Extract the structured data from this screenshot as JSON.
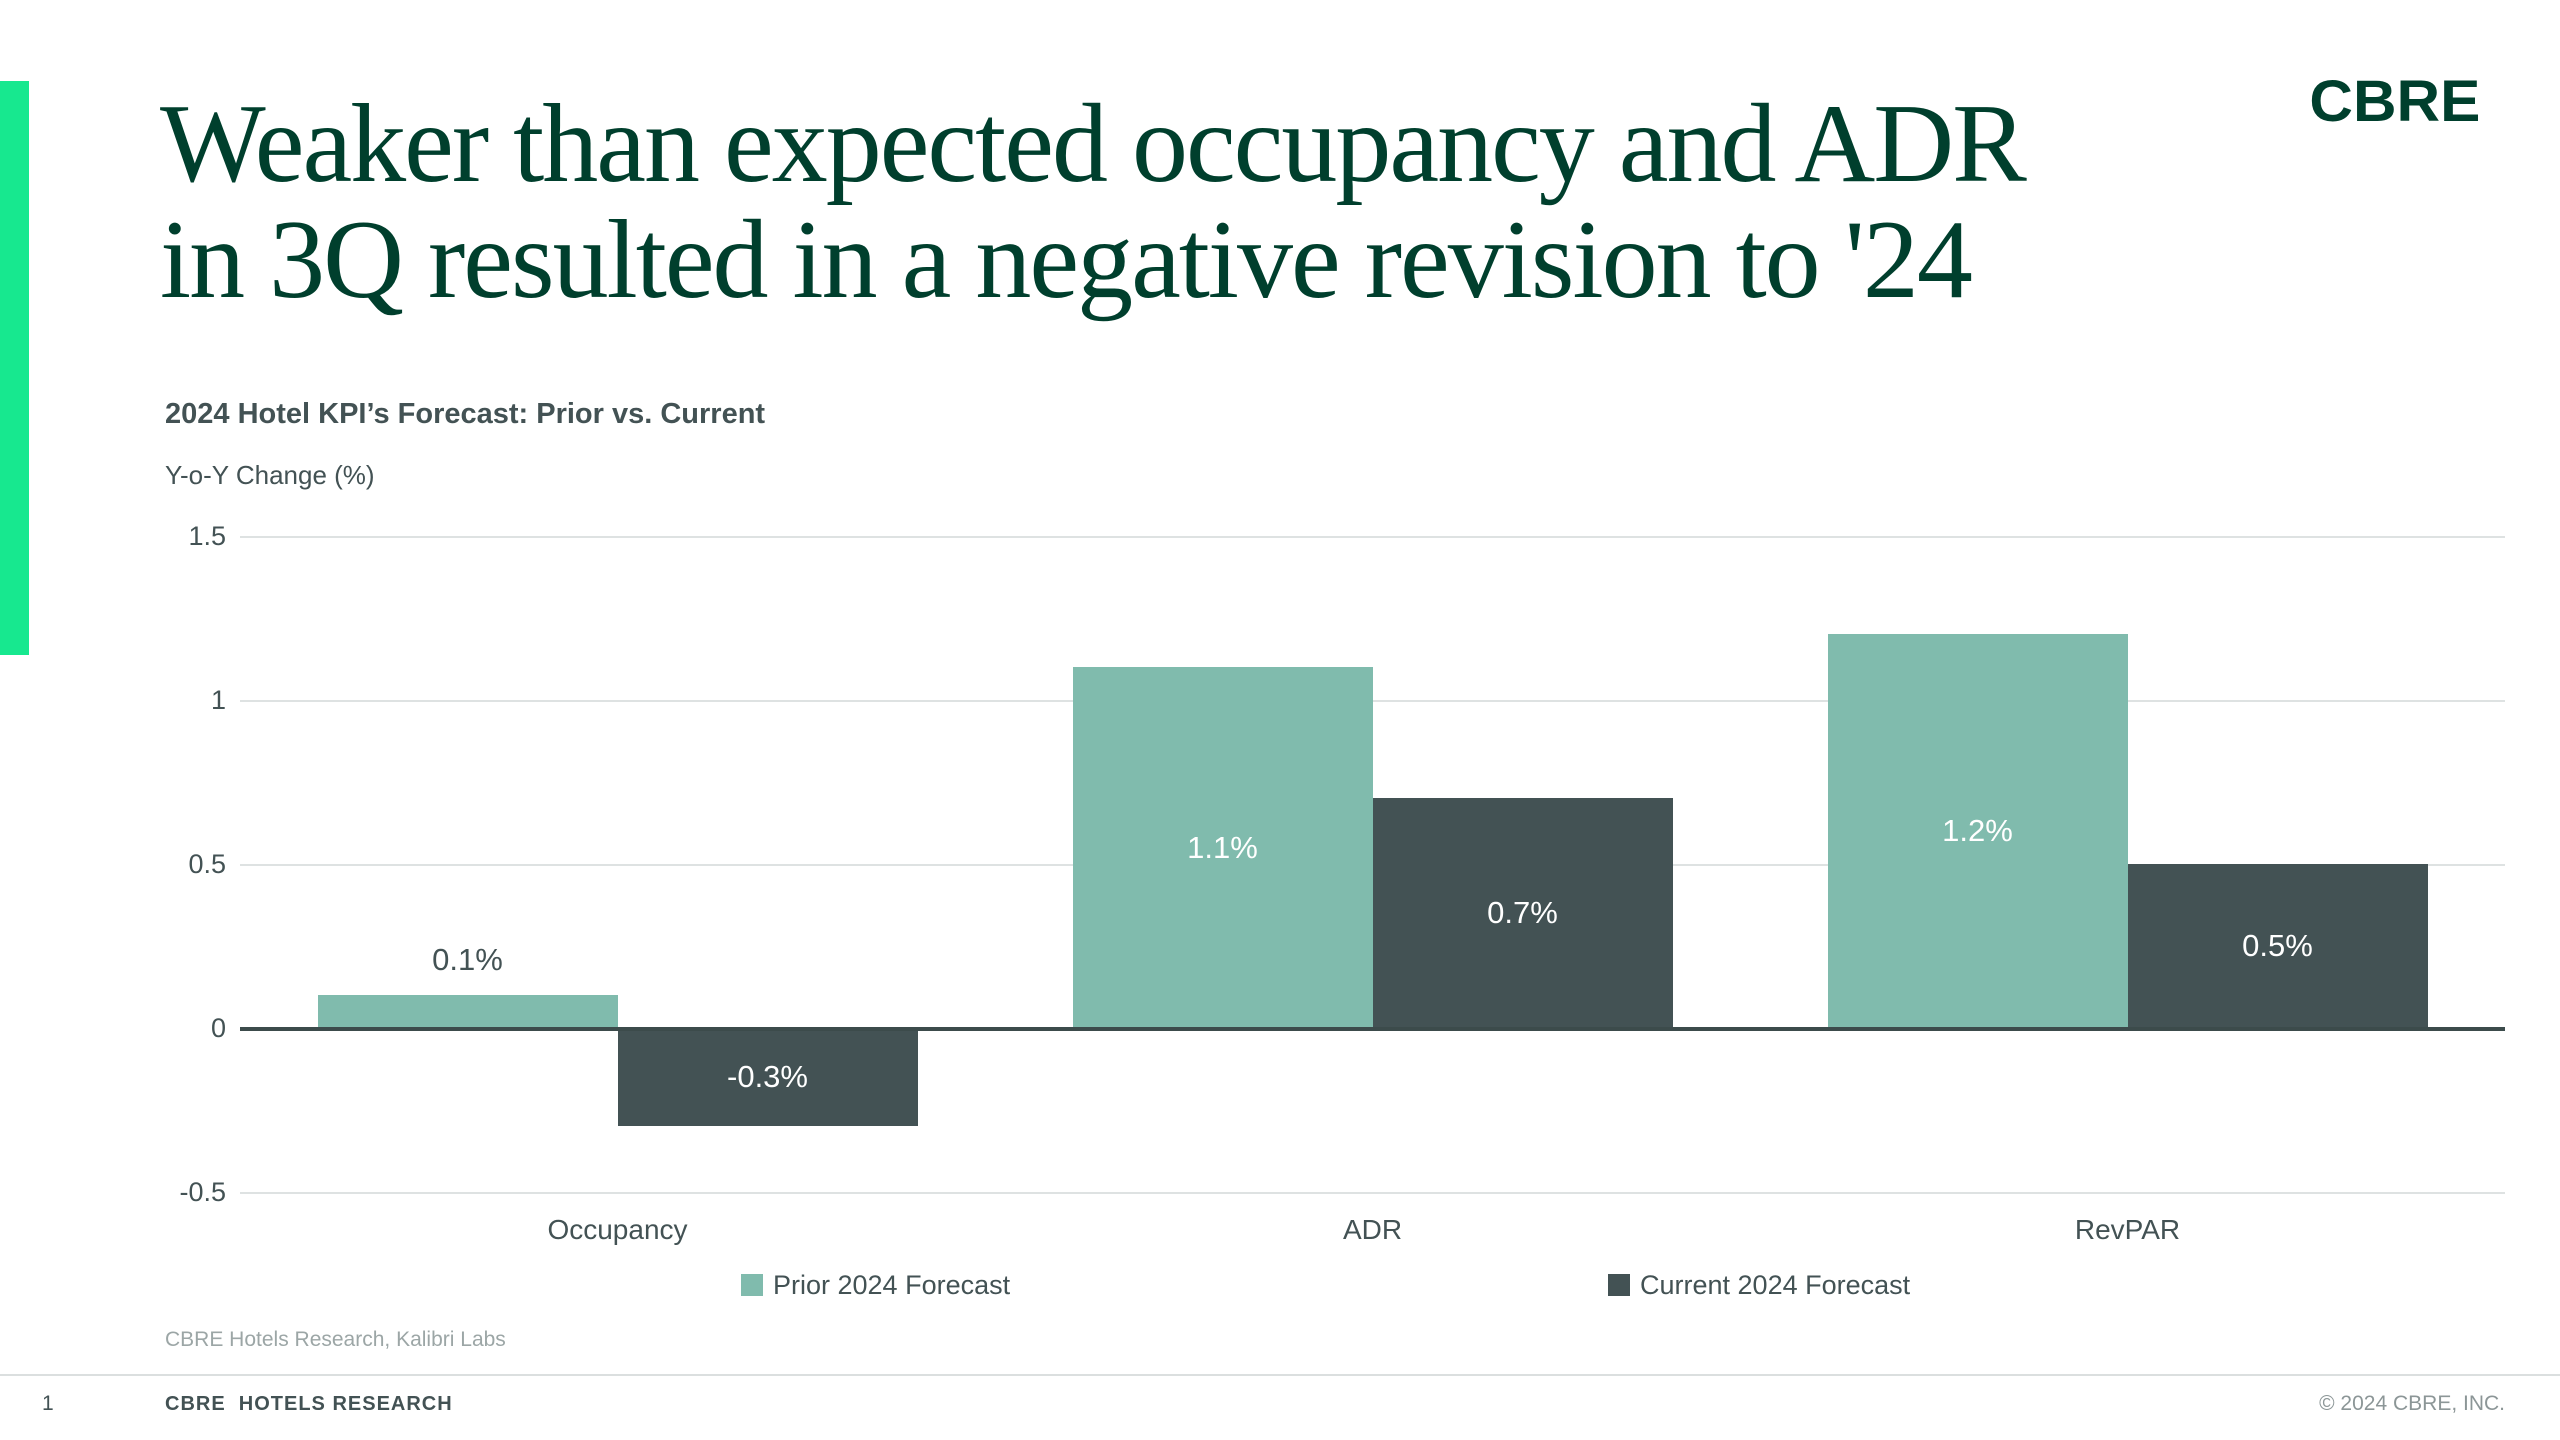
{
  "slide": {
    "title_line1": "Weaker than expected occupancy and ADR",
    "title_line2": "in 3Q resulted in a negative revision to '24",
    "logo_text": "CBRE"
  },
  "chart_data": {
    "type": "bar",
    "title": "2024 Hotel KPI’s Forecast: Prior vs. Current",
    "ylabel": "Y-o-Y Change (%)",
    "ylim": [
      -0.5,
      1.5
    ],
    "yticks": [
      {
        "v": 1.5,
        "label": "1.5"
      },
      {
        "v": 1,
        "label": "1"
      },
      {
        "v": 0.5,
        "label": "0.5"
      },
      {
        "v": 0,
        "label": "0"
      },
      {
        "v": -0.5,
        "label": "-0.5"
      }
    ],
    "categories": [
      "Occupancy",
      "ADR",
      "RevPAR"
    ],
    "series": [
      {
        "name": "Prior 2024 Forecast",
        "color": "#80BBAD",
        "values": [
          0.1,
          1.1,
          1.2
        ],
        "labels": [
          "0.1%",
          "1.1%",
          "1.2%"
        ]
      },
      {
        "name": "Current 2024 Forecast",
        "color": "#435254",
        "values": [
          -0.3,
          0.7,
          0.5
        ],
        "labels": [
          "-0.3%",
          "0.7%",
          "0.5%"
        ]
      }
    ],
    "grid": true,
    "legend_position": "bottom"
  },
  "footer": {
    "source": "CBRE Hotels Research, Kalibri Labs",
    "page_number": "1",
    "brand_line": "CBRE  HOTELS RESEARCH",
    "copyright": "© 2024 CBRE, INC."
  },
  "colors": {
    "accent_green": "#17E88F",
    "title_green": "#003F2D",
    "dark_text": "#435254",
    "prior_bar": "#80BBAD",
    "current_bar": "#435254",
    "gridline": "#DEE2E2",
    "zero_line": "#3C4B4B",
    "source_text": "#9CA6A6",
    "copyright_text": "#8C9697",
    "bar_label_light": "#FFFFFF"
  }
}
